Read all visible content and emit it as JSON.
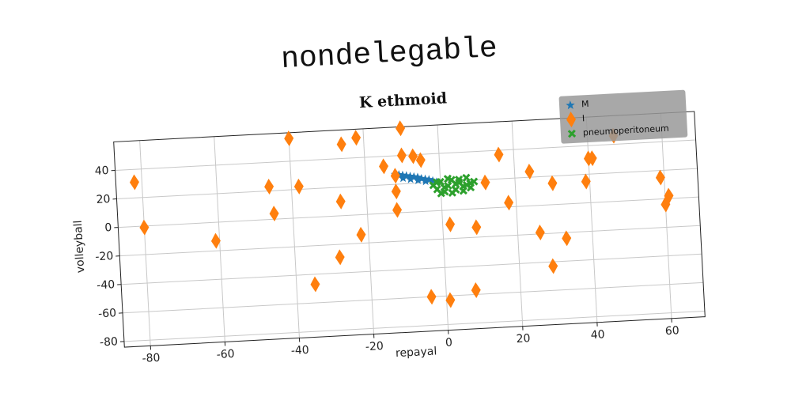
{
  "heading": "nondelegable",
  "chart_data": {
    "type": "scatter",
    "title": "K ethmoid",
    "x_label": "repayal",
    "y_label": "volleyball",
    "xlim": [
      -87,
      69
    ],
    "ylim": [
      -84,
      60
    ],
    "xticks": [
      -80,
      -60,
      -40,
      -20,
      0,
      20,
      40,
      60
    ],
    "yticks": [
      -80,
      -60,
      -40,
      -20,
      0,
      20,
      40
    ],
    "grid": true,
    "legend": "upper right",
    "series": [
      {
        "name": "M",
        "color": "#1f77b4",
        "marker": "star",
        "x": [
          -12,
          -11,
          -10,
          -9,
          -8,
          -7,
          -6,
          -5,
          -4,
          -3,
          -2,
          -1,
          -10,
          -8,
          -6,
          -4
        ],
        "y": [
          27,
          26.5,
          26,
          25.5,
          25,
          24.5,
          24,
          23,
          22.5,
          22,
          21,
          20,
          24,
          23,
          22,
          21
        ]
      },
      {
        "name": "I",
        "color": "#ff7f0e",
        "marker": "diamond",
        "x": [
          -82,
          -80,
          -61,
          -46,
          -45,
          -40,
          -38,
          -35,
          -28,
          -27,
          -26,
          -22,
          -22,
          -15,
          -12,
          -12,
          -12,
          -10,
          -10,
          -7,
          -5,
          -4,
          1,
          2,
          8,
          9,
          12,
          16,
          18,
          24,
          26,
          29,
          30,
          33,
          39,
          40,
          41,
          47,
          59,
          60,
          61
        ],
        "y": [
          31,
          -1,
          -13,
          23,
          4,
          56,
          22,
          -47,
          -29,
          10,
          50,
          -14,
          54,
          33,
          26,
          15,
          2,
          59,
          40,
          39,
          36,
          -60,
          -63,
          -10,
          -57,
          -13,
          18,
          37,
          3,
          24,
          -19,
          -43,
          15,
          -24,
          15,
          31,
          31,
          46,
          15,
          -4,
          2
        ]
      },
      {
        "name": "pneumoperitoneum",
        "color": "#2ca02c",
        "marker": "x",
        "x": [
          -2,
          -1,
          0,
          1,
          2,
          3,
          4,
          5,
          6,
          7,
          8,
          0,
          2,
          4,
          6,
          8,
          1,
          3,
          5,
          7,
          -1,
          9
        ],
        "y": [
          18,
          15,
          20,
          13,
          17,
          21,
          14,
          19,
          16,
          22,
          18,
          12,
          22,
          18,
          13,
          15,
          16,
          12,
          21,
          17,
          20,
          19
        ]
      }
    ]
  }
}
